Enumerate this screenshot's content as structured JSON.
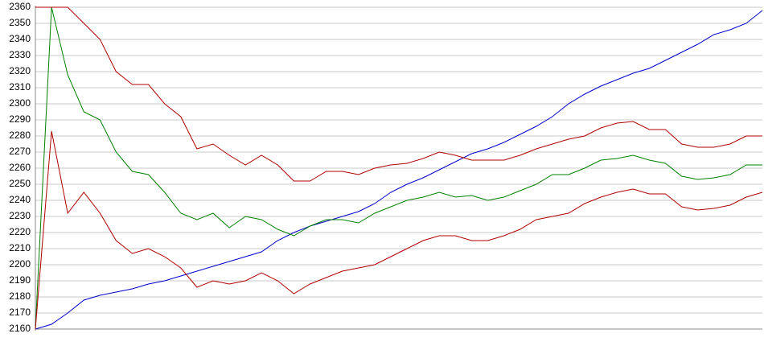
{
  "chart_data": {
    "type": "line",
    "categories": [
      null,
      null,
      null,
      null,
      null,
      null,
      null,
      null,
      null,
      null,
      null,
      null,
      null,
      null,
      null,
      null,
      null,
      null,
      null,
      null,
      null,
      null,
      null,
      null,
      null,
      null,
      null,
      null,
      null,
      null,
      null,
      null,
      null,
      null,
      null,
      null,
      null,
      null,
      null,
      null,
      null,
      null,
      null,
      null,
      null,
      null
    ],
    "series": [
      {
        "color": "#0000cc",
        "values": [
          2160,
          2163,
          2170,
          2178,
          2181,
          2183,
          2185,
          2188,
          2190,
          2193,
          2196,
          2199,
          2202,
          2205,
          2208,
          2215,
          2220,
          2224,
          2227,
          2230,
          2233,
          2238,
          2245,
          2250,
          2254,
          2259,
          2264,
          2269,
          2272,
          2276,
          2281,
          2286,
          2292,
          2300,
          2306,
          2311,
          2315,
          2319,
          2322,
          2327,
          2332,
          2337,
          2343,
          2346,
          2350,
          2358
        ]
      },
      {
        "color": "#008000",
        "values": [
          2160,
          2360,
          2318,
          2295,
          2290,
          2270,
          2258,
          2256,
          2245,
          2232,
          2228,
          2232,
          2223,
          2230,
          2228,
          2222,
          2218,
          2224,
          2228,
          2228,
          2226,
          2232,
          2236,
          2240,
          2242,
          2245,
          2242,
          2243,
          2240,
          2242,
          2246,
          2250,
          2256,
          2256,
          2260,
          2265,
          2266,
          2268,
          2265,
          2263,
          2255,
          2253,
          2254,
          2256,
          2262,
          2262
        ]
      },
      {
        "color": "#b00000",
        "values": [
          2360,
          2360,
          2360,
          2350,
          2340,
          2320,
          2312,
          2312,
          2300,
          2292,
          2272,
          2275,
          2268,
          2262,
          2268,
          2262,
          2252,
          2252,
          2258,
          2258,
          2256,
          2260,
          2262,
          2263,
          2266,
          2270,
          2268,
          2265,
          2265,
          2265,
          2268,
          2272,
          2275,
          2278,
          2280,
          2285,
          2288,
          2289,
          2284,
          2284,
          2275,
          2273,
          2273,
          2275,
          2280,
          2280
        ]
      },
      {
        "color": "#b00000",
        "values": [
          2160,
          2283,
          2232,
          2245,
          2232,
          2215,
          2207,
          2210,
          2205,
          2198,
          2186,
          2190,
          2188,
          2190,
          2195,
          2190,
          2182,
          2188,
          2192,
          2196,
          2198,
          2200,
          2205,
          2210,
          2215,
          2218,
          2218,
          2215,
          2215,
          2218,
          2222,
          2228,
          2230,
          2232,
          2238,
          2242,
          2245,
          2247,
          2244,
          2244,
          2236,
          2234,
          2235,
          2237,
          2242,
          2245
        ]
      }
    ],
    "ylim": [
      2160,
      2360
    ],
    "yticks": [
      2160,
      2170,
      2180,
      2190,
      2200,
      2210,
      2220,
      2230,
      2240,
      2250,
      2260,
      2270,
      2280,
      2290,
      2300,
      2310,
      2320,
      2330,
      2340,
      2350,
      2360
    ],
    "grid": true
  }
}
